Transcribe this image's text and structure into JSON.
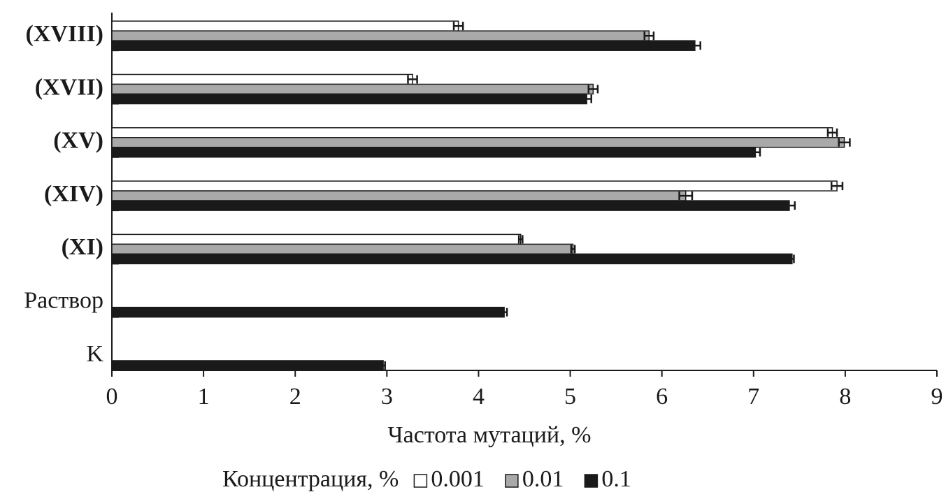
{
  "chart_data": {
    "type": "bar",
    "orientation": "horizontal",
    "x_label": "Частота мутаций, %",
    "legend_title": "Концентрация, %",
    "categories": [
      "(XVIII)",
      "(XVII)",
      "(XV)",
      "(XIV)",
      "(XI)",
      "Раствор",
      "K"
    ],
    "series": [
      {
        "name": "0.001",
        "color": "#ffffff",
        "values": [
          3.78,
          3.28,
          7.86,
          7.91,
          4.46,
          null,
          null
        ],
        "errors": [
          0.05,
          0.05,
          0.05,
          0.06,
          0.02,
          null,
          null
        ]
      },
      {
        "name": "0.01",
        "color": "#a9a9a9",
        "values": [
          5.86,
          5.25,
          7.99,
          6.26,
          5.03,
          null,
          null
        ],
        "errors": [
          0.05,
          0.05,
          0.06,
          0.07,
          0.02,
          null,
          null
        ]
      },
      {
        "name": "0.1",
        "color": "#1a1a1a",
        "values": [
          6.36,
          5.18,
          7.02,
          7.39,
          7.42,
          4.28,
          2.96
        ],
        "errors": [
          0.06,
          0.05,
          0.05,
          0.06,
          0.02,
          0.03,
          0.02
        ]
      }
    ],
    "xlim": [
      0,
      9
    ],
    "xticks": [
      0,
      1,
      2,
      3,
      4,
      5,
      6,
      7,
      8,
      9
    ],
    "legend": "bottom"
  }
}
